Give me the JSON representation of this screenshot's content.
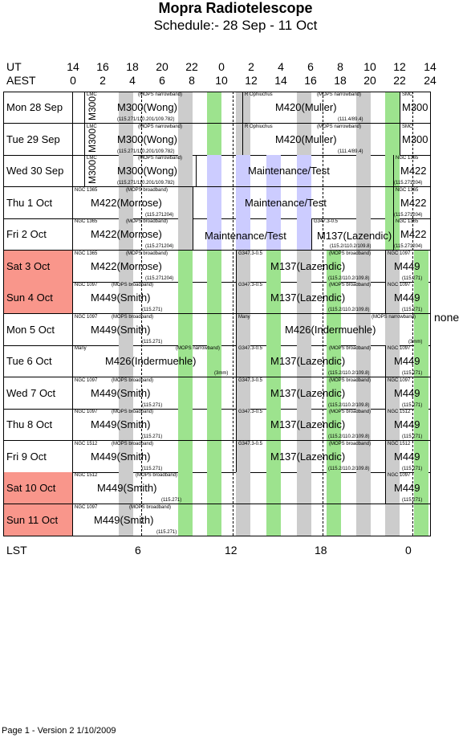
{
  "header": {
    "title": "Mopra Radiotelescope",
    "subtitle": "Schedule:- 28 Sep - 11 Oct"
  },
  "axes": {
    "ut_label": "UT",
    "aest_label": "AEST",
    "lst_label": "LST",
    "ut_ticks": [
      "14",
      "16",
      "18",
      "20",
      "22",
      "0",
      "2",
      "4",
      "6",
      "8",
      "10",
      "12",
      "14"
    ],
    "aest_ticks": [
      "0",
      "2",
      "4",
      "6",
      "8",
      "10",
      "12",
      "14",
      "16",
      "18",
      "20",
      "22",
      "24"
    ],
    "lst_ticks": [
      "6",
      "12",
      "18",
      "0"
    ]
  },
  "days": [
    {
      "label": "Mon  28 Sep",
      "weekend": false
    },
    {
      "label": "Tue  29 Sep",
      "weekend": false
    },
    {
      "label": "Wed  30 Sep",
      "weekend": false
    },
    {
      "label": "Thu    1  Oct",
      "weekend": false
    },
    {
      "label": "Fri    2  Oct",
      "weekend": false
    },
    {
      "label": "Sat    3  Oct",
      "weekend": true
    },
    {
      "label": "Sun    4  Oct",
      "weekend": true
    },
    {
      "label": "Mon    5  Oct",
      "weekend": false
    },
    {
      "label": "Tue    6  Oct",
      "weekend": false
    },
    {
      "label": "Wed    7  Oct",
      "weekend": false
    },
    {
      "label": "Thu    8  Oct",
      "weekend": false
    },
    {
      "label": "Fri    9  Oct",
      "weekend": false
    },
    {
      "label": "Sat   10  Oct",
      "weekend": true
    },
    {
      "label": "Sun   11  Oct",
      "weekend": true
    }
  ],
  "blocks": {
    "r0a": {
      "src": "LMC",
      "mode": "(MOPS narrowband)",
      "name": "M300(Wong)",
      "freq": "(115.271/110.201/109.782)",
      "vlabel": "M300"
    },
    "r0b": {
      "src": "R Ophiuchus",
      "mode": "(MOPS narrowband)",
      "name": "M420(Muller)",
      "freq": "(111.4/89.4)"
    },
    "r0c": {
      "src": "SMC",
      "name": "M300"
    },
    "r1a": {
      "src": "LMC",
      "mode": "(MOPS narrowband)",
      "name": "M300(Wong)",
      "freq": "(115.271/110.201/109.782)",
      "vlabel": "M300"
    },
    "r1b": {
      "src": "R Ophiuchus",
      "mode": "(MOPS narrowband)",
      "name": "M420(Muller)",
      "freq": "(111.4/89.4)"
    },
    "r1c": {
      "src": "SMC",
      "name": "M300"
    },
    "r2a": {
      "src": "LMC",
      "mode": "(MOPS narrowband)",
      "name": "M300(Wong)",
      "freq": "(115.271/110.201/109.782)",
      "vlabel": "M300"
    },
    "r2b": {
      "name": "Maintenance/Test"
    },
    "r2c": {
      "src": "NGC 1365",
      "name": "M422",
      "freq": "(115.271204)"
    },
    "r3a": {
      "src": "NGC 1365",
      "mode": "(MOPS broadband)",
      "name": "M422(Morrose)",
      "freq": "(115.271204)"
    },
    "r3b": {
      "name": "Maintenance/Test"
    },
    "r3c": {
      "src": "NGC 1365",
      "name": "M422",
      "freq": "(115.271204)"
    },
    "r4a": {
      "src": "NGC 1365",
      "mode": "(MOPS broadband)",
      "name": "M422(Morrose)",
      "freq": "(115.271204)"
    },
    "r4b": {
      "name": "Maintenance/Test"
    },
    "r4c": {
      "src": "G347.3-0.5",
      "name": "M137(Lazendic)",
      "freq": "(115.2/110.2/109.8)"
    },
    "r4d": {
      "src": "NGC 1365",
      "name": "M422",
      "freq": "(115.271204)"
    },
    "r5a": {
      "src": "NGC 1365",
      "mode": "(MOPS broadband)",
      "name": "M422(Morrose)",
      "freq": "(115.271204)"
    },
    "r5b": {
      "src": "G347.3-0.5",
      "mode": "(MOPS broadband)",
      "name": "M137(Lazendic)",
      "freq": "(115.2/110.2/109.8)"
    },
    "r5c": {
      "src": "NGC 1097",
      "name": "M449",
      "freq": "(115.271)"
    },
    "r6a": {
      "src": "NGC 1097",
      "mode": "(MOPS broadband)",
      "name": "M449(Smith)",
      "freq": "(115.271)"
    },
    "r6b": {
      "src": "G347.3-0.5",
      "mode": "(MOPS broadband)",
      "name": "M137(Lazendic)",
      "freq": "(115.2/110.2/109.8)"
    },
    "r6c": {
      "src": "NGC 1097",
      "name": "M449",
      "freq": "(115.271)"
    },
    "r7a": {
      "src": "NGC 1097",
      "mode": "(MOPS broadband)",
      "name": "M449(Smith)",
      "freq": "(115.271)"
    },
    "r7b": {
      "src": "Many",
      "mode": "(MOPS narrowband)",
      "name": "M426(Indermuehle)",
      "freq": "(3mm)"
    },
    "r8a": {
      "src": "Many",
      "mode": "(MOPS narrowband)",
      "name": "M426(Indermuehle)",
      "freq": "(3mm)"
    },
    "r8b": {
      "src": "G347.3-0.5",
      "mode": "(MOPS broadband)",
      "name": "M137(Lazendic)",
      "freq": "(115.2/110.2/109.8)"
    },
    "r8c": {
      "src": "NGC 1097",
      "name": "M449",
      "freq": "(115.271)"
    },
    "r9a": {
      "src": "NGC 1097",
      "mode": "(MOPS broadband)",
      "name": "M449(Smith)",
      "freq": "(115.271)"
    },
    "r9b": {
      "src": "G347.3-0.5",
      "mode": "(MOPS broadband)",
      "name": "M137(Lazendic)",
      "freq": "(115.2/110.2/109.8)"
    },
    "r9c": {
      "src": "NGC 1097",
      "name": "M449",
      "freq": "(115.271)"
    },
    "r10a": {
      "src": "NGC 1097",
      "mode": "(MOPS broadband)",
      "name": "M449(Smith)",
      "freq": "(115.271)"
    },
    "r10b": {
      "src": "G347.3-0.5",
      "mode": "(MOPS broadband)",
      "name": "M137(Lazendic)",
      "freq": "(115.2/110.2/109.8)"
    },
    "r10c": {
      "src": "NGC 1512",
      "name": "M449",
      "freq": "(115.271)"
    },
    "r11a": {
      "src": "NGC 1512",
      "mode": "(MOPS broadband)",
      "name": "M449(Smith)",
      "freq": "(115.271)"
    },
    "r11b": {
      "src": "G347.3-0.5",
      "mode": "(MOPS broadband)",
      "name": "M137(Lazendic)",
      "freq": "(115.2/110.2/109.8)"
    },
    "r11c": {
      "src": "NGC 1512",
      "name": "M449",
      "freq": "(115.271)"
    },
    "r12a": {
      "src": "NGC 1512",
      "mode": "(MOPS broadband)",
      "name": "M449(Smith)",
      "freq": "(115.271)"
    },
    "r12c": {
      "src": "NGC 1097",
      "name": "M449",
      "freq": "(115.271)"
    },
    "r13a": {
      "src": "NGC 1097",
      "mode": "(MOPS broadband)",
      "name": "M449(Smith)",
      "freq": "(115.271)"
    }
  },
  "side_note": "none",
  "footer": "Page 1 - Version 2  1/10/2009",
  "colors": {
    "weekend": "#f9968b",
    "gray": "#cccccc",
    "green": "#9de38e",
    "blue": "#ccccff"
  }
}
